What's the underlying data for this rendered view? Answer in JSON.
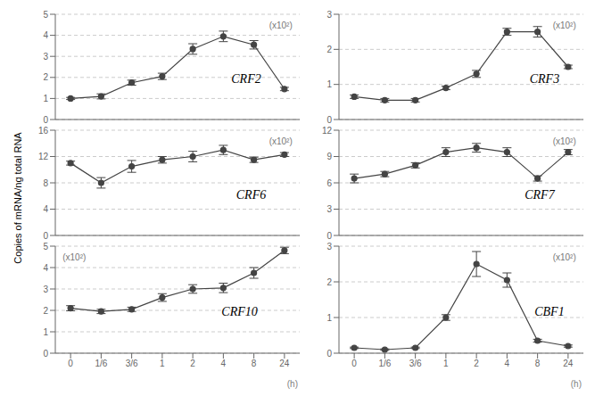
{
  "chart_data": [
    {
      "type": "line",
      "categories": [
        "0",
        "1/6",
        "3/6",
        "1",
        "2",
        "4",
        "8",
        "24"
      ],
      "values": [
        1.0,
        1.1,
        1.75,
        2.05,
        3.35,
        3.95,
        3.55,
        1.45
      ],
      "yerr": [
        0.05,
        0.12,
        0.12,
        0.15,
        0.25,
        0.25,
        0.2,
        0.08
      ],
      "color": "#444444",
      "marker": "circle",
      "ylim": [
        0,
        5
      ],
      "yticks": [
        0,
        1,
        2,
        3,
        4,
        5
      ],
      "grid": true,
      "tick_labels": "y",
      "annotations": [
        "CRF2",
        "(x10²)"
      ]
    },
    {
      "type": "line",
      "categories": [
        "0",
        "1/6",
        "3/6",
        "1",
        "2",
        "4",
        "8",
        "24"
      ],
      "values": [
        0.65,
        0.55,
        0.55,
        0.9,
        1.3,
        2.5,
        2.5,
        1.5
      ],
      "yerr": [
        0.05,
        0.05,
        0.05,
        0.05,
        0.1,
        0.1,
        0.15,
        0.05
      ],
      "color": "#444444",
      "marker": "circle",
      "ylim": [
        0,
        3
      ],
      "yticks": [
        0,
        1,
        2,
        3
      ],
      "grid": true,
      "tick_labels": "y",
      "annotations": [
        "CRF3",
        "(x10²)"
      ]
    },
    {
      "type": "line",
      "categories": [
        "0",
        "1/6",
        "3/6",
        "1",
        "2",
        "4",
        "8",
        "24"
      ],
      "values": [
        11.0,
        8.0,
        10.5,
        11.5,
        12.0,
        13.0,
        11.5,
        12.3
      ],
      "yerr": [
        0.3,
        0.8,
        0.9,
        0.5,
        0.8,
        0.7,
        0.4,
        0.3
      ],
      "color": "#444444",
      "marker": "circle",
      "ylim": [
        0,
        16
      ],
      "yticks": [
        0,
        4,
        8,
        12,
        16
      ],
      "grid": true,
      "tick_labels": "y",
      "annotations": [
        "CRF6",
        "(x10²)"
      ]
    },
    {
      "type": "line",
      "categories": [
        "0",
        "1/6",
        "3/6",
        "1",
        "2",
        "4",
        "8",
        "24"
      ],
      "values": [
        6.5,
        7.0,
        8.0,
        9.5,
        10.0,
        9.5,
        6.5,
        9.5
      ],
      "yerr": [
        0.5,
        0.3,
        0.3,
        0.5,
        0.5,
        0.5,
        0.3,
        0.3
      ],
      "color": "#444444",
      "marker": "circle",
      "ylim": [
        0,
        12
      ],
      "yticks": [
        0,
        3,
        6,
        9,
        12
      ],
      "grid": true,
      "tick_labels": "y",
      "annotations": [
        "CRF7",
        "(x10²)"
      ]
    },
    {
      "type": "line",
      "categories": [
        "0",
        "1/6",
        "3/6",
        "1",
        "2",
        "4",
        "8",
        "24"
      ],
      "values": [
        2.1,
        1.95,
        2.05,
        2.6,
        3.0,
        3.05,
        3.75,
        4.8
      ],
      "yerr": [
        0.12,
        0.1,
        0.1,
        0.18,
        0.2,
        0.22,
        0.25,
        0.15
      ],
      "color": "#444444",
      "marker": "circle",
      "ylim": [
        0,
        5
      ],
      "yticks": [
        0,
        1,
        2,
        3,
        4,
        5
      ],
      "grid": true,
      "xlabel": "(h)",
      "annotations": [
        "CRF10",
        "(x10²)"
      ]
    },
    {
      "type": "line",
      "categories": [
        "0",
        "1/6",
        "3/6",
        "1",
        "2",
        "4",
        "8",
        "24"
      ],
      "values": [
        0.15,
        0.1,
        0.15,
        1.0,
        2.5,
        2.05,
        0.35,
        0.2
      ],
      "yerr": [
        0.02,
        0.02,
        0.02,
        0.08,
        0.35,
        0.2,
        0.04,
        0.03
      ],
      "color": "#444444",
      "marker": "circle",
      "ylim": [
        0,
        3
      ],
      "yticks": [
        0,
        1,
        2,
        3
      ],
      "grid": true,
      "xlabel": "(h)",
      "annotations": [
        "CBF1",
        "(x10²)"
      ]
    }
  ],
  "ylabel": "Copies of mRNA/ng total RNA"
}
